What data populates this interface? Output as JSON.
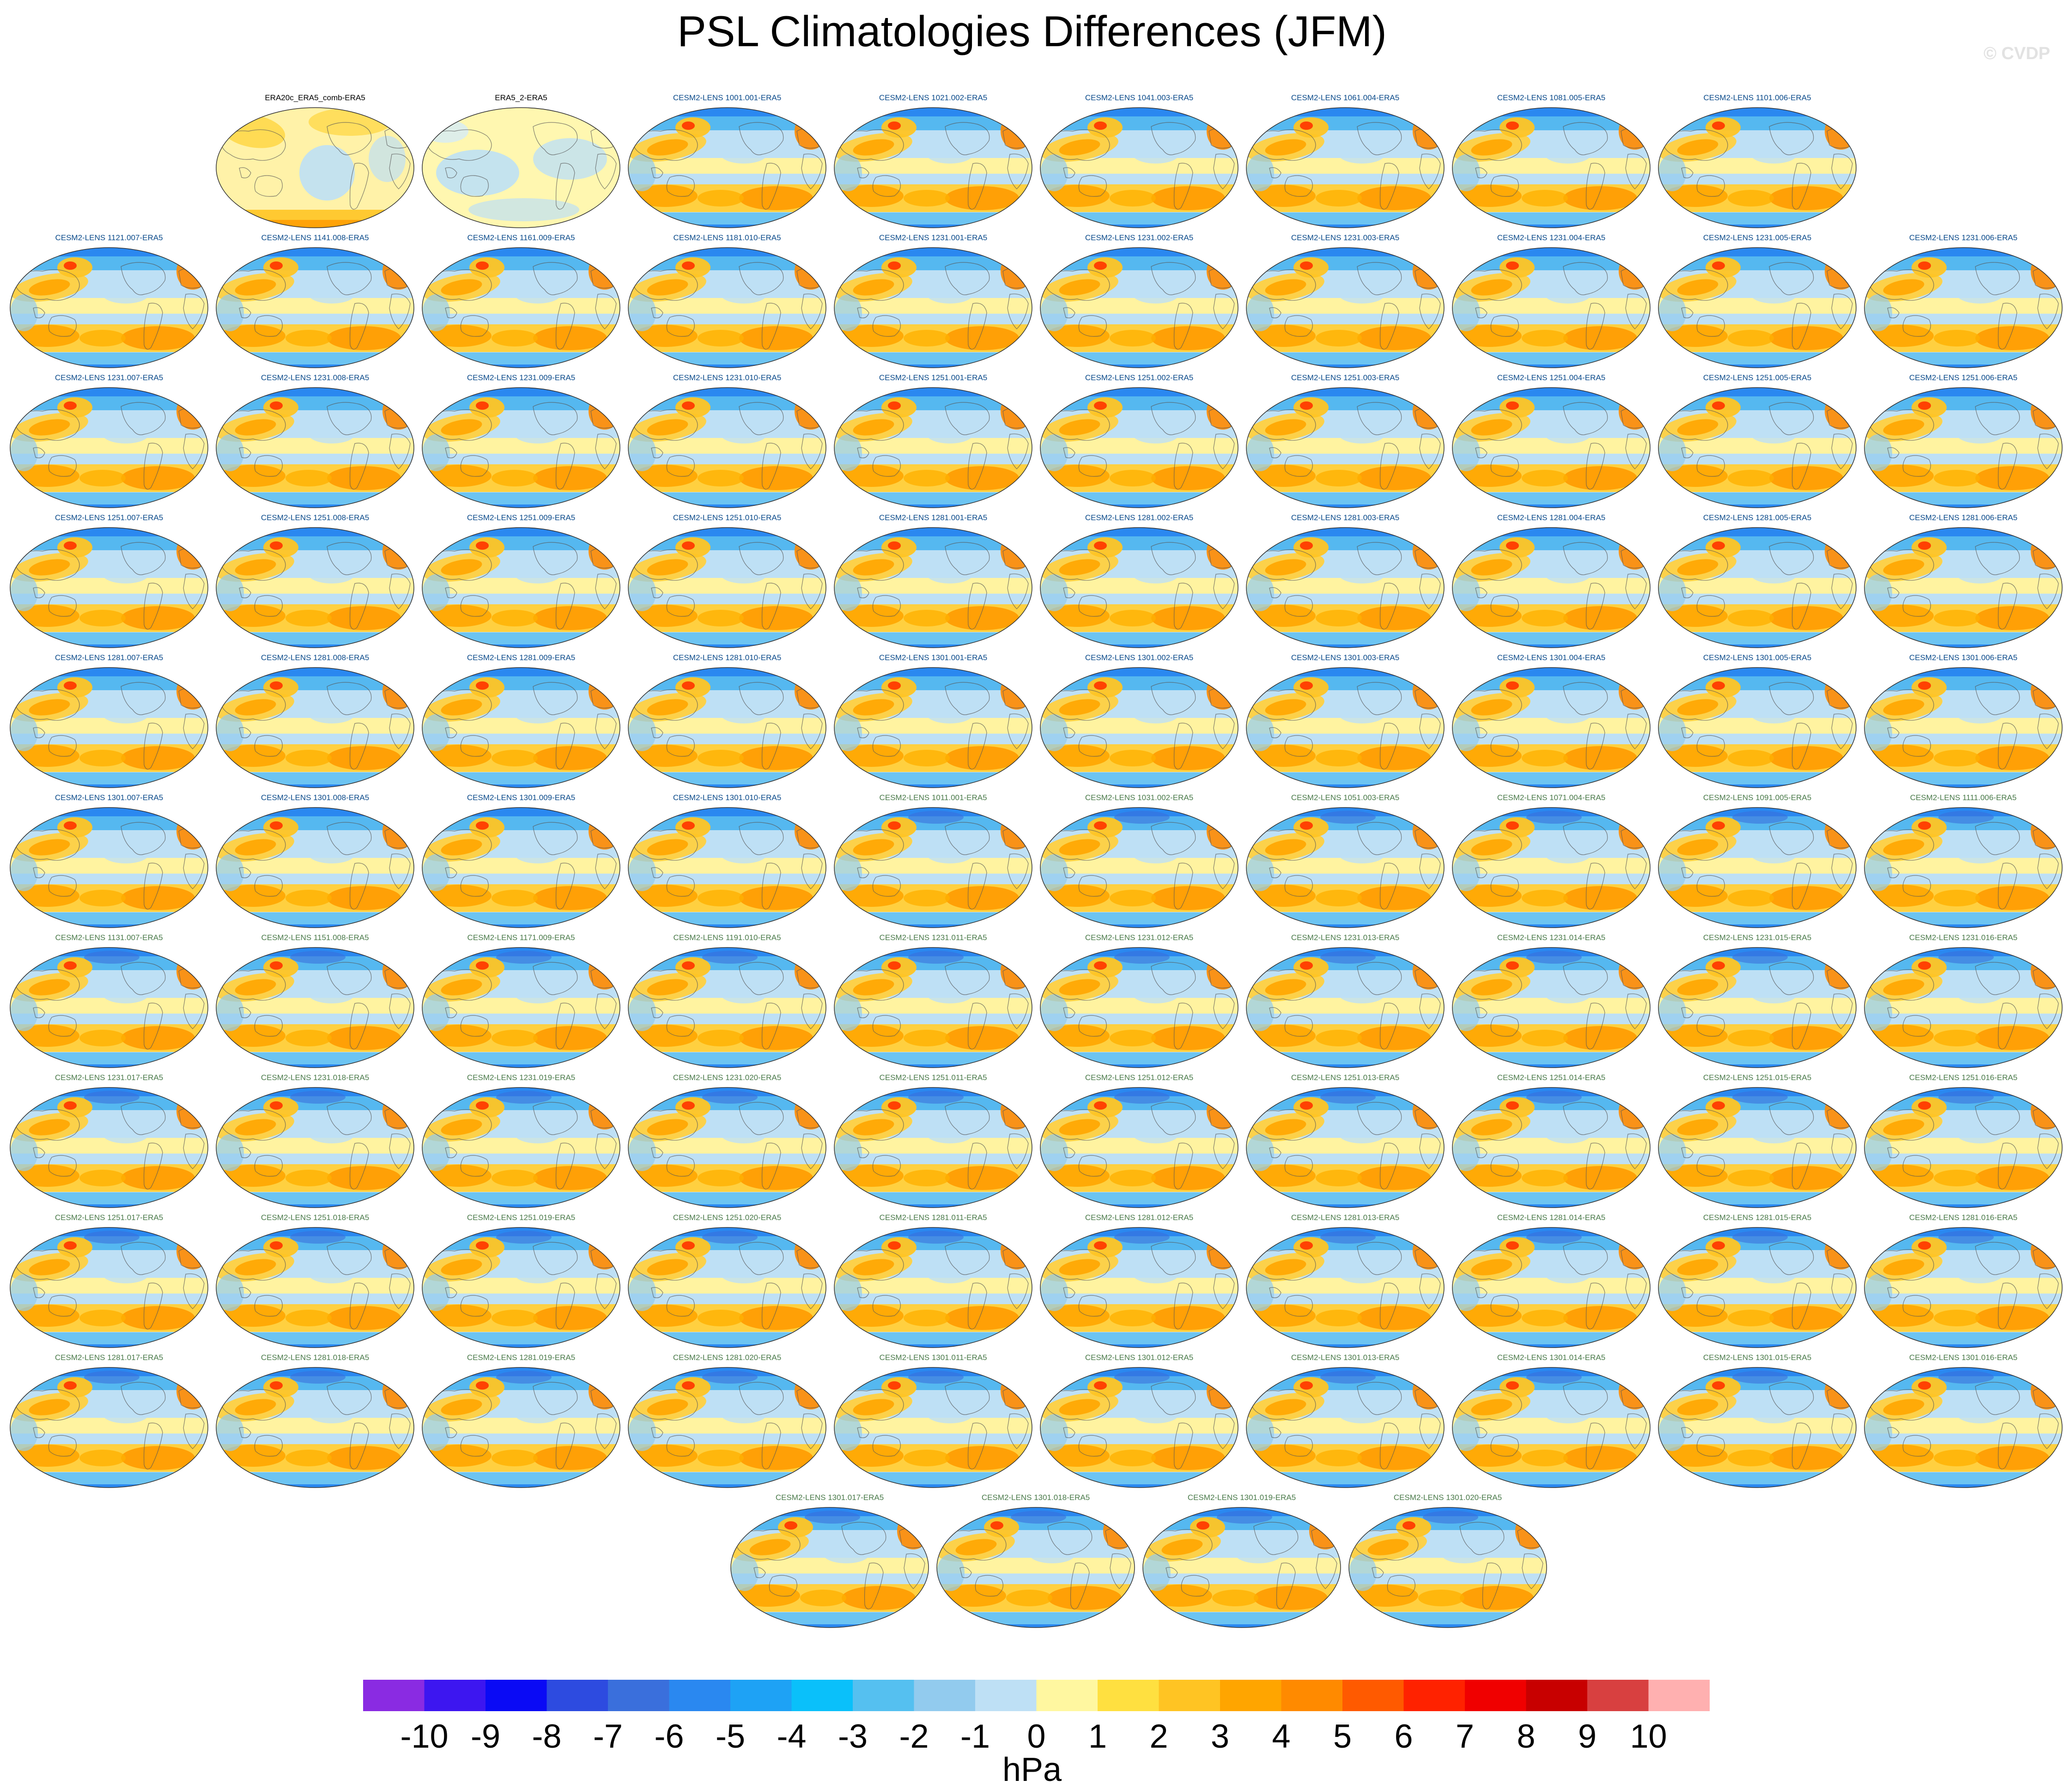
{
  "figure": {
    "title": "PSL Climatologies Differences (JFM)",
    "watermark": "© CVDP"
  },
  "panels": [
    {
      "label": "ERA20c_ERA5_comb-ERA5",
      "style": "obs1"
    },
    {
      "label": "ERA5_2-ERA5",
      "style": "obs2"
    },
    {
      "label": "CESM2-LENS 1001.001-ERA5",
      "style": "model"
    },
    {
      "label": "CESM2-LENS 1021.002-ERA5",
      "style": "model"
    },
    {
      "label": "CESM2-LENS 1041.003-ERA5",
      "style": "model"
    },
    {
      "label": "CESM2-LENS 1061.004-ERA5",
      "style": "model"
    },
    {
      "label": "CESM2-LENS 1081.005-ERA5",
      "style": "model"
    },
    {
      "label": "CESM2-LENS 1101.006-ERA5",
      "style": "model"
    },
    {
      "label": "CESM2-LENS 1121.007-ERA5",
      "style": "model"
    },
    {
      "label": "CESM2-LENS 1141.008-ERA5",
      "style": "model"
    },
    {
      "label": "CESM2-LENS 1161.009-ERA5",
      "style": "model"
    },
    {
      "label": "CESM2-LENS 1181.010-ERA5",
      "style": "model"
    },
    {
      "label": "CESM2-LENS 1231.001-ERA5",
      "style": "model"
    },
    {
      "label": "CESM2-LENS 1231.002-ERA5",
      "style": "model"
    },
    {
      "label": "CESM2-LENS 1231.003-ERA5",
      "style": "model"
    },
    {
      "label": "CESM2-LENS 1231.004-ERA5",
      "style": "model"
    },
    {
      "label": "CESM2-LENS 1231.005-ERA5",
      "style": "model"
    },
    {
      "label": "CESM2-LENS 1231.006-ERA5",
      "style": "model"
    },
    {
      "label": "CESM2-LENS 1231.007-ERA5",
      "style": "model"
    },
    {
      "label": "CESM2-LENS 1231.008-ERA5",
      "style": "model"
    },
    {
      "label": "CESM2-LENS 1231.009-ERA5",
      "style": "model"
    },
    {
      "label": "CESM2-LENS 1231.010-ERA5",
      "style": "model"
    },
    {
      "label": "CESM2-LENS 1251.001-ERA5",
      "style": "model"
    },
    {
      "label": "CESM2-LENS 1251.002-ERA5",
      "style": "model"
    },
    {
      "label": "CESM2-LENS 1251.003-ERA5",
      "style": "model"
    },
    {
      "label": "CESM2-LENS 1251.004-ERA5",
      "style": "model"
    },
    {
      "label": "CESM2-LENS 1251.005-ERA5",
      "style": "model"
    },
    {
      "label": "CESM2-LENS 1251.006-ERA5",
      "style": "model"
    },
    {
      "label": "CESM2-LENS 1251.007-ERA5",
      "style": "model"
    },
    {
      "label": "CESM2-LENS 1251.008-ERA5",
      "style": "model"
    },
    {
      "label": "CESM2-LENS 1251.009-ERA5",
      "style": "model"
    },
    {
      "label": "CESM2-LENS 1251.010-ERA5",
      "style": "model"
    },
    {
      "label": "CESM2-LENS 1281.001-ERA5",
      "style": "model"
    },
    {
      "label": "CESM2-LENS 1281.002-ERA5",
      "style": "model"
    },
    {
      "label": "CESM2-LENS 1281.003-ERA5",
      "style": "model"
    },
    {
      "label": "CESM2-LENS 1281.004-ERA5",
      "style": "model"
    },
    {
      "label": "CESM2-LENS 1281.005-ERA5",
      "style": "model"
    },
    {
      "label": "CESM2-LENS 1281.006-ERA5",
      "style": "model"
    },
    {
      "label": "CESM2-LENS 1281.007-ERA5",
      "style": "model"
    },
    {
      "label": "CESM2-LENS 1281.008-ERA5",
      "style": "model"
    },
    {
      "label": "CESM2-LENS 1281.009-ERA5",
      "style": "model"
    },
    {
      "label": "CESM2-LENS 1281.010-ERA5",
      "style": "model"
    },
    {
      "label": "CESM2-LENS 1301.001-ERA5",
      "style": "model"
    },
    {
      "label": "CESM2-LENS 1301.002-ERA5",
      "style": "model"
    },
    {
      "label": "CESM2-LENS 1301.003-ERA5",
      "style": "model"
    },
    {
      "label": "CESM2-LENS 1301.004-ERA5",
      "style": "model"
    },
    {
      "label": "CESM2-LENS 1301.005-ERA5",
      "style": "model"
    },
    {
      "label": "CESM2-LENS 1301.006-ERA5",
      "style": "model"
    },
    {
      "label": "CESM2-LENS 1301.007-ERA5",
      "style": "model"
    },
    {
      "label": "CESM2-LENS 1301.008-ERA5",
      "style": "model"
    },
    {
      "label": "CESM2-LENS 1301.009-ERA5",
      "style": "model"
    },
    {
      "label": "CESM2-LENS 1301.010-ERA5",
      "style": "model"
    },
    {
      "label": "CESM2-LENS 1011.001-ERA5",
      "style": "model2"
    },
    {
      "label": "CESM2-LENS 1031.002-ERA5",
      "style": "model2"
    },
    {
      "label": "CESM2-LENS 1051.003-ERA5",
      "style": "model2"
    },
    {
      "label": "CESM2-LENS 1071.004-ERA5",
      "style": "model2"
    },
    {
      "label": "CESM2-LENS 1091.005-ERA5",
      "style": "model2"
    },
    {
      "label": "CESM2-LENS 1111.006-ERA5",
      "style": "model2"
    },
    {
      "label": "CESM2-LENS 1131.007-ERA5",
      "style": "model2"
    },
    {
      "label": "CESM2-LENS 1151.008-ERA5",
      "style": "model2"
    },
    {
      "label": "CESM2-LENS 1171.009-ERA5",
      "style": "model2"
    },
    {
      "label": "CESM2-LENS 1191.010-ERA5",
      "style": "model2"
    },
    {
      "label": "CESM2-LENS 1231.011-ERA5",
      "style": "model2"
    },
    {
      "label": "CESM2-LENS 1231.012-ERA5",
      "style": "model2"
    },
    {
      "label": "CESM2-LENS 1231.013-ERA5",
      "style": "model2"
    },
    {
      "label": "CESM2-LENS 1231.014-ERA5",
      "style": "model2"
    },
    {
      "label": "CESM2-LENS 1231.015-ERA5",
      "style": "model2"
    },
    {
      "label": "CESM2-LENS 1231.016-ERA5",
      "style": "model2"
    },
    {
      "label": "CESM2-LENS 1231.017-ERA5",
      "style": "model2"
    },
    {
      "label": "CESM2-LENS 1231.018-ERA5",
      "style": "model2"
    },
    {
      "label": "CESM2-LENS 1231.019-ERA5",
      "style": "model2"
    },
    {
      "label": "CESM2-LENS 1231.020-ERA5",
      "style": "model2"
    },
    {
      "label": "CESM2-LENS 1251.011-ERA5",
      "style": "model2"
    },
    {
      "label": "CESM2-LENS 1251.012-ERA5",
      "style": "model2"
    },
    {
      "label": "CESM2-LENS 1251.013-ERA5",
      "style": "model2"
    },
    {
      "label": "CESM2-LENS 1251.014-ERA5",
      "style": "model2"
    },
    {
      "label": "CESM2-LENS 1251.015-ERA5",
      "style": "model2"
    },
    {
      "label": "CESM2-LENS 1251.016-ERA5",
      "style": "model2"
    },
    {
      "label": "CESM2-LENS 1251.017-ERA5",
      "style": "model2"
    },
    {
      "label": "CESM2-LENS 1251.018-ERA5",
      "style": "model2"
    },
    {
      "label": "CESM2-LENS 1251.019-ERA5",
      "style": "model2"
    },
    {
      "label": "CESM2-LENS 1251.020-ERA5",
      "style": "model2"
    },
    {
      "label": "CESM2-LENS 1281.011-ERA5",
      "style": "model2"
    },
    {
      "label": "CESM2-LENS 1281.012-ERA5",
      "style": "model2"
    },
    {
      "label": "CESM2-LENS 1281.013-ERA5",
      "style": "model2"
    },
    {
      "label": "CESM2-LENS 1281.014-ERA5",
      "style": "model2"
    },
    {
      "label": "CESM2-LENS 1281.015-ERA5",
      "style": "model2"
    },
    {
      "label": "CESM2-LENS 1281.016-ERA5",
      "style": "model2"
    },
    {
      "label": "CESM2-LENS 1281.017-ERA5",
      "style": "model2"
    },
    {
      "label": "CESM2-LENS 1281.018-ERA5",
      "style": "model2"
    },
    {
      "label": "CESM2-LENS 1281.019-ERA5",
      "style": "model2"
    },
    {
      "label": "CESM2-LENS 1281.020-ERA5",
      "style": "model2"
    },
    {
      "label": "CESM2-LENS 1301.011-ERA5",
      "style": "model2"
    },
    {
      "label": "CESM2-LENS 1301.012-ERA5",
      "style": "model2"
    },
    {
      "label": "CESM2-LENS 1301.013-ERA5",
      "style": "model2"
    },
    {
      "label": "CESM2-LENS 1301.014-ERA5",
      "style": "model2"
    },
    {
      "label": "CESM2-LENS 1301.015-ERA5",
      "style": "model2"
    },
    {
      "label": "CESM2-LENS 1301.016-ERA5",
      "style": "model2"
    },
    {
      "label": "CESM2-LENS 1301.017-ERA5",
      "style": "model2"
    },
    {
      "label": "CESM2-LENS 1301.018-ERA5",
      "style": "model2"
    },
    {
      "label": "CESM2-LENS 1301.019-ERA5",
      "style": "model2"
    },
    {
      "label": "CESM2-LENS 1301.020-ERA5",
      "style": "model2"
    }
  ],
  "colorbar": {
    "units": "hPa",
    "colors": [
      "#8a2be2",
      "#3d16f0",
      "#0a0af5",
      "#2d4be0",
      "#3a6fdc",
      "#2a88f0",
      "#1ea2f5",
      "#0ac0fa",
      "#55c0f0",
      "#92cbee",
      "#bee0f5",
      "#fff7a0",
      "#ffe040",
      "#ffc423",
      "#ffa500",
      "#ff8a00",
      "#ff5a00",
      "#ff2200",
      "#f00000",
      "#c80000",
      "#d84040",
      "#ffb0b0"
    ],
    "tick_labels": [
      "-10",
      "-9",
      "-8",
      "-7",
      "-6",
      "-5",
      "-4",
      "-3",
      "-2",
      "-1",
      "0",
      "1",
      "2",
      "3",
      "4",
      "5",
      "6",
      "7",
      "8",
      "9",
      "10"
    ]
  },
  "colors": {
    "title_blue": "#0a4a8a",
    "title_green": "#4a7a4a",
    "title_black": "#000000"
  }
}
